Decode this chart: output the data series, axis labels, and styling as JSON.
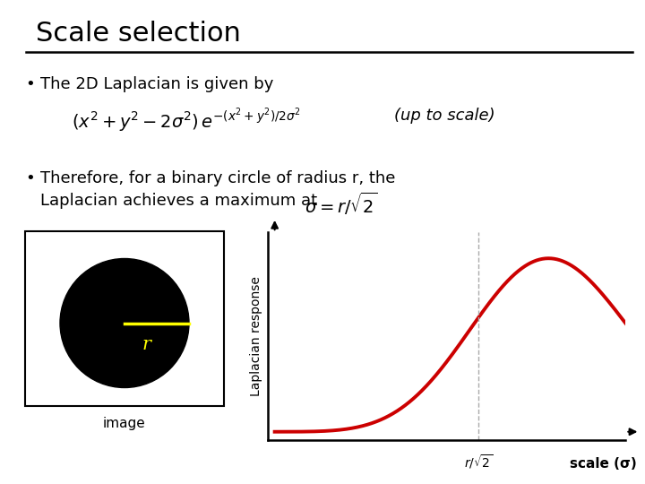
{
  "title": "Scale selection",
  "bg_color": "#ffffff",
  "title_color": "#000000",
  "title_fontsize": 22,
  "bullet1": "The 2D Laplacian is given by",
  "formula": "$(x^2 + y^2 - 2\\sigma^2)\\, e^{-(x^2+y^2)/2\\sigma^2}$",
  "up_to_scale": "(up to scale)",
  "bullet2_line1": "Therefore, for a binary circle of radius r, the",
  "bullet2_line2": "Laplacian achieves a maximum at",
  "sigma_formula": "$\\sigma = r/\\sqrt{2}$",
  "ylabel": "Laplacian response",
  "xlabel_text": "scale (σ)",
  "xmarker": "$r / \\sqrt{2}$",
  "image_label": "image",
  "curve_color": "#cc0000",
  "dashed_color": "#aaaaaa",
  "circle_color": "#000000",
  "radius_color": "#ffff00",
  "radius_label_color": "#ffff00",
  "text_fontsize": 13,
  "formula_fontsize": 13
}
